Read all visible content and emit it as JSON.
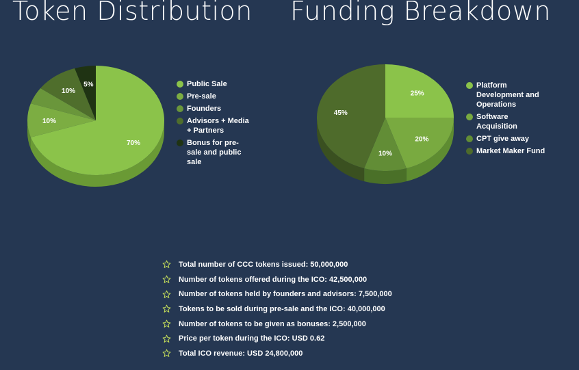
{
  "titles": {
    "left": "Token Distribution",
    "right": "Funding Breakdown"
  },
  "chart_data": [
    {
      "type": "pie",
      "title": "Token Distribution",
      "slices": [
        {
          "label": "Public Sale",
          "value": 70,
          "pct_label": "70%",
          "color": "#8bc34a",
          "side_color": "#6a9a35"
        },
        {
          "label": "Pre-sale",
          "value": 10,
          "pct_label": "10%",
          "color": "#7cad42",
          "side_color": "#5e8c31"
        },
        {
          "label": "Founders",
          "value": 5,
          "pct_label": "",
          "color": "#6a963b",
          "side_color": "#4f7a2b"
        },
        {
          "label": "Advisors + Media + Partners",
          "value": 10,
          "pct_label": "10%",
          "color": "#4f6e2c",
          "side_color": "#3a5321"
        },
        {
          "label": "Bonus for pre-sale and public sale",
          "value": 5,
          "pct_label": "5%",
          "color": "#1f3313",
          "side_color": "#15240c"
        }
      ],
      "legend": "right"
    },
    {
      "type": "pie",
      "title": "Funding Breakdown",
      "slices": [
        {
          "label": "Platform Development and Operations",
          "value": 25,
          "pct_label": "25%",
          "color": "#8bc34a",
          "side_color": "#6a9a35"
        },
        {
          "label": "Software Acquisition",
          "value": 20,
          "pct_label": "20%",
          "color": "#79aa40",
          "side_color": "#5e8c31"
        },
        {
          "label": "CPT give away",
          "value": 10,
          "pct_label": "10%",
          "color": "#628d36",
          "side_color": "#4a7028"
        },
        {
          "label": "Market Maker Fund",
          "value": 45,
          "pct_label": "45%",
          "color": "#4e6b2b",
          "side_color": "#3a5020"
        }
      ],
      "legend": "right"
    }
  ],
  "facts": [
    "Total number of CCC tokens issued: 50,000,000",
    "Number of tokens offered during the ICO: 42,500,000",
    "Number of tokens held by founders and advisors: 7,500,000",
    "Tokens to be sold during pre-sale and the ICO: 40,000,000",
    "Number of tokens to be given as bonuses: 2,500,000",
    "Price per token during the ICO: USD 0.62",
    "Total ICO revenue: USD 24,800,000"
  ],
  "star_color": "#c8e15a",
  "star_icon": "star-outline-icon"
}
